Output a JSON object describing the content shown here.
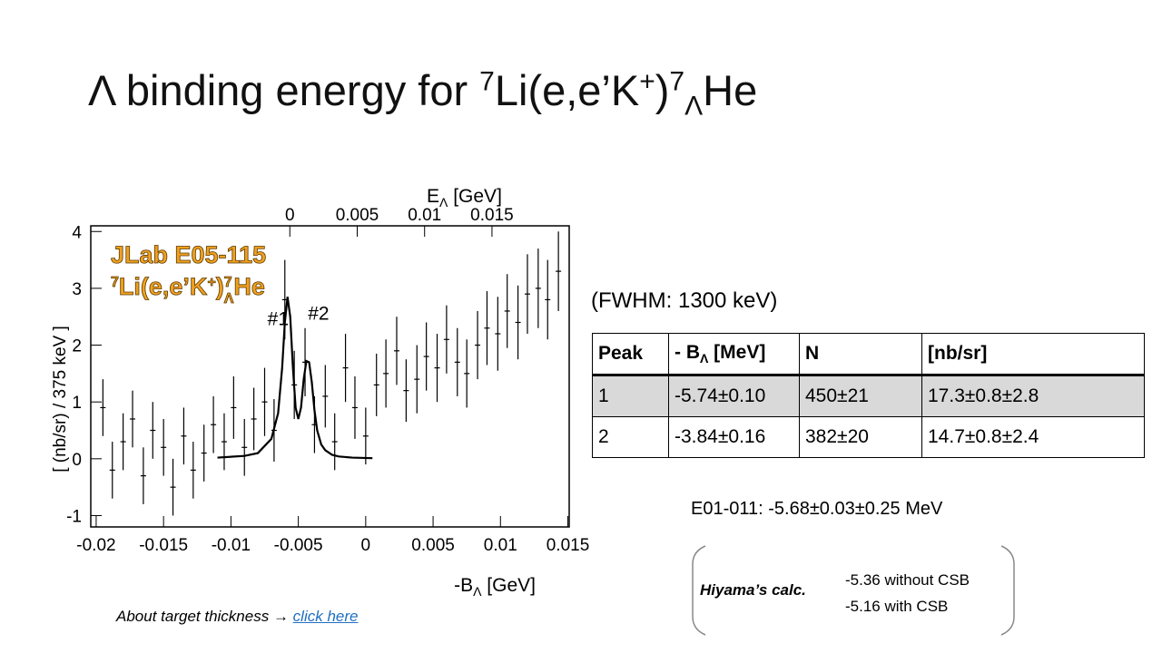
{
  "title": [
    "Λ binding energy for ",
    "7",
    "Li(e,e’K",
    "+",
    ")",
    "7",
    "Λ",
    "He"
  ],
  "chart_data": {
    "type": "scatter",
    "x_label": [
      "-B",
      "Λ",
      " [GeV]"
    ],
    "x2_label": [
      "E",
      "Λ",
      " [GeV]"
    ],
    "y_label": "[ (nb/sr) / 375 keV ]",
    "overlay": {
      "line1": "JLab E05-115",
      "line2": [
        "7",
        "Li(e,e’K",
        "+",
        ")",
        "7",
        "Λ",
        "He"
      ],
      "color": "#f0a020"
    },
    "peak_labels": [
      {
        "text": "#1",
        "x": -0.0065,
        "y": 2.35
      },
      {
        "text": "#2",
        "x": -0.0035,
        "y": 2.45
      }
    ],
    "xlim": [
      -0.0204,
      0.0151
    ],
    "xticks": [
      -0.02,
      -0.015,
      -0.01,
      -0.005,
      0,
      0.005,
      0.01,
      0.015
    ],
    "x2lim": [
      -0.01477,
      0.02073
    ],
    "x2ticks": [
      0,
      0.005,
      0.01,
      0.015
    ],
    "ylim": [
      -1.2,
      4.1
    ],
    "yticks": [
      -1,
      0,
      1,
      2,
      3,
      4
    ],
    "x": [
      -0.0195,
      -0.0188,
      -0.018,
      -0.0173,
      -0.0165,
      -0.0158,
      -0.015,
      -0.0143,
      -0.0135,
      -0.0128,
      -0.012,
      -0.0113,
      -0.0105,
      -0.0098,
      -0.009,
      -0.0083,
      -0.0075,
      -0.0068,
      -0.006,
      -0.0053,
      -0.0045,
      -0.0038,
      -0.003,
      -0.0023,
      -0.0015,
      -0.0008,
      0.0,
      0.0008,
      0.0015,
      0.0023,
      0.003,
      0.0038,
      0.0045,
      0.0053,
      0.006,
      0.0068,
      0.0075,
      0.0083,
      0.009,
      0.0098,
      0.0105,
      0.0113,
      0.012,
      0.0128,
      0.0135,
      0.0143
    ],
    "values": [
      0.9,
      -0.2,
      0.3,
      0.7,
      -0.3,
      0.5,
      0.2,
      -0.5,
      0.4,
      -0.2,
      0.1,
      0.6,
      0.3,
      0.9,
      0.2,
      0.7,
      1.0,
      0.5,
      2.8,
      1.3,
      1.7,
      0.6,
      1.1,
      0.3,
      1.6,
      0.9,
      0.4,
      1.3,
      1.5,
      1.9,
      1.2,
      1.4,
      1.8,
      1.6,
      2.1,
      1.7,
      1.5,
      2.0,
      2.3,
      2.2,
      2.6,
      2.4,
      2.9,
      3.0,
      2.8,
      3.3
    ],
    "errors": [
      0.5,
      0.5,
      0.5,
      0.5,
      0.5,
      0.5,
      0.5,
      0.5,
      0.5,
      0.5,
      0.5,
      0.5,
      0.5,
      0.55,
      0.5,
      0.55,
      0.6,
      0.55,
      0.7,
      0.6,
      0.6,
      0.5,
      0.55,
      0.5,
      0.6,
      0.55,
      0.5,
      0.55,
      0.6,
      0.6,
      0.55,
      0.6,
      0.6,
      0.6,
      0.6,
      0.6,
      0.6,
      0.6,
      0.65,
      0.65,
      0.65,
      0.65,
      0.7,
      0.7,
      0.7,
      0.7
    ],
    "color": "#000000",
    "fit": {
      "color": "#000000",
      "x": [
        -0.011,
        -0.009,
        -0.008,
        -0.007,
        -0.0065,
        -0.0062,
        -0.006,
        -0.0058,
        -0.0056,
        -0.0054,
        -0.0052,
        -0.005,
        -0.0048,
        -0.0046,
        -0.0044,
        -0.0042,
        -0.004,
        -0.0038,
        -0.0036,
        -0.0033,
        -0.003,
        -0.0025,
        -0.002,
        -0.001,
        0.0005
      ],
      "values": [
        0.02,
        0.05,
        0.1,
        0.35,
        0.8,
        1.6,
        2.4,
        2.85,
        2.5,
        1.6,
        0.9,
        0.7,
        0.9,
        1.4,
        1.72,
        1.7,
        1.35,
        0.85,
        0.5,
        0.25,
        0.15,
        0.07,
        0.04,
        0.02,
        0.01
      ]
    }
  },
  "fwhm": "(FWHM: 1300 keV)",
  "table": {
    "header": [
      "Peak",
      {
        "text": "- B",
        "sub": "Λ",
        "rest": " [MeV]"
      },
      "N",
      "[nb/sr]"
    ],
    "rows": [
      [
        "1",
        "-5.74±0.10",
        "450±21",
        "17.3±0.8±2.8"
      ],
      [
        "2",
        "-3.84±0.16",
        "382±20",
        "14.7±0.8±2.4"
      ]
    ]
  },
  "e01": "E01-011: -5.68±0.03±0.25 MeV",
  "hiyama": {
    "label": "Hiyama’s calc.",
    "lines": [
      "-5.36 without CSB",
      "-5.16 with CSB"
    ]
  },
  "footer": {
    "text": "About target thickness ",
    "arrow": "→",
    "link": "click here"
  }
}
